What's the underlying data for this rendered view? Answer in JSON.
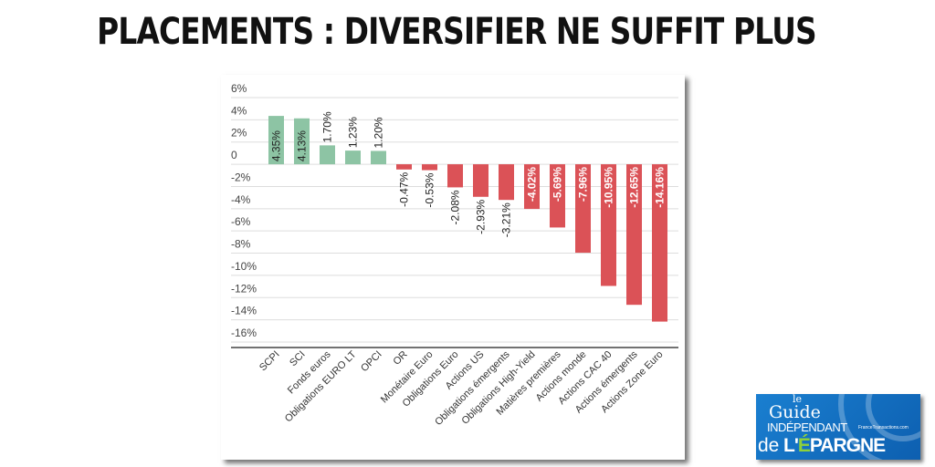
{
  "title": "PLACEMENTS : DIVERSIFIER NE SUFFIT PLUS",
  "logo": {
    "line1": "le",
    "line2": "Guide",
    "line3": "INDÉPENDANT",
    "line4": "de",
    "line5a": "L'",
    "line5b": "É",
    "line5c": "PARGNE",
    "site": "FranceTransactions.com"
  },
  "colors": {
    "positive": "#8dc4a4",
    "negative": "#db5257",
    "grid": "#dddddd",
    "axis": "#444444"
  },
  "chart_data": {
    "type": "bar",
    "title": "",
    "xlabel": "",
    "ylabel": "",
    "ylim": [
      -16,
      6
    ],
    "yticks": [
      6,
      4,
      2,
      0,
      -2,
      -4,
      -6,
      -8,
      -10,
      -12,
      -14,
      -16
    ],
    "ytick_labels": [
      "6%",
      "4%",
      "2%",
      "0",
      "-2%",
      "-4%",
      "-6%",
      "-8%",
      "-10%",
      "-12%",
      "-14%",
      "-16%"
    ],
    "grid": true,
    "categories": [
      "SCPI",
      "SCI",
      "Fonds euros",
      "Obligations EURO LT",
      "OPCI",
      "OR",
      "Monétaire Euro",
      "Obligations Euro",
      "Actions US",
      "Obligations émergents",
      "Obligations High-Yield",
      "Matières premières",
      "Actions monde",
      "Actions CAC 40",
      "Actions émergents",
      "Actions Zone Euro"
    ],
    "values": [
      4.35,
      4.13,
      1.7,
      1.23,
      1.2,
      -0.47,
      -0.53,
      -2.08,
      -2.93,
      -3.21,
      -4.02,
      -5.69,
      -7.96,
      -10.95,
      -12.65,
      -14.16
    ],
    "data_labels": [
      "4.35%",
      "4.13%",
      "1.70%",
      "1.23%",
      "1.20%",
      "-0.47%",
      "-0.53%",
      "-2.08%",
      "-2.93%",
      "-3.21%",
      "-4.02%",
      "-5.69%",
      "-7.96%",
      "-10.95%",
      "-12.65%",
      "-14.16%"
    ]
  }
}
